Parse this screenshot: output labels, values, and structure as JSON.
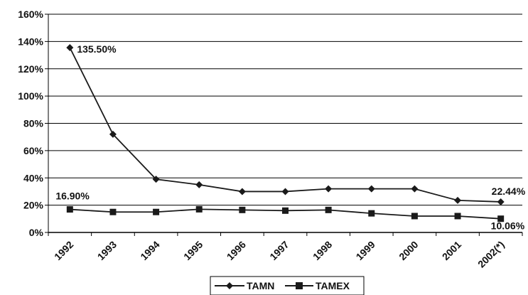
{
  "chart_data": {
    "type": "line",
    "categories": [
      "1992",
      "1993",
      "1994",
      "1995",
      "1996",
      "1997",
      "1998",
      "1999",
      "2000",
      "2001",
      "2002(*)"
    ],
    "series": [
      {
        "name": "TAMN",
        "marker": "diamond",
        "values": [
          135.5,
          72,
          39,
          35,
          30,
          30,
          32,
          32,
          32,
          23.5,
          22.44
        ]
      },
      {
        "name": "TAMEX",
        "marker": "square",
        "values": [
          16.9,
          15,
          15,
          17,
          16.5,
          16,
          16.5,
          14,
          12,
          12,
          10.06
        ]
      }
    ],
    "yticks": [
      "0%",
      "20%",
      "40%",
      "60%",
      "80%",
      "100%",
      "120%",
      "140%",
      "160%"
    ],
    "ylim": [
      0,
      160
    ],
    "grid": true,
    "legend": "bottom",
    "annotations": [
      {
        "text": "135.50%",
        "series": 0,
        "index": 0
      },
      {
        "text": "16.90%",
        "series": 1,
        "index": 0
      },
      {
        "text": "22.44%",
        "series": 0,
        "index": 10
      },
      {
        "text": "10.06%",
        "series": 1,
        "index": 10
      }
    ],
    "title": "",
    "xlabel": "",
    "ylabel": "",
    "colors": {
      "line": "#1a1a1a",
      "grid": "#000000"
    }
  }
}
